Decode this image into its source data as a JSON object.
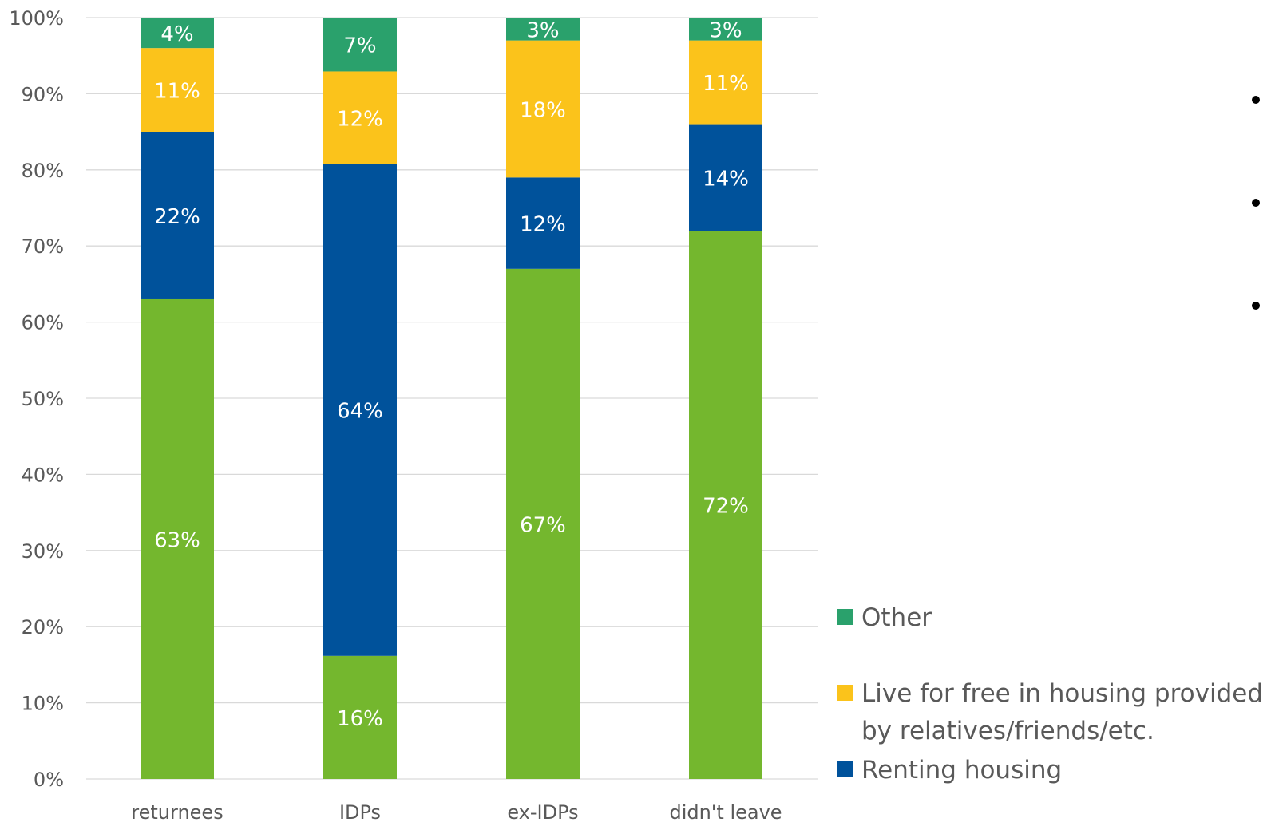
{
  "chart_data": {
    "type": "bar",
    "stacked": true,
    "categories": [
      "returnees",
      "IDPs",
      "ex-IDPs",
      "didn't leave"
    ],
    "ylim": [
      0,
      100
    ],
    "yticks": [
      "0%",
      "10%",
      "20%",
      "30%",
      "40%",
      "50%",
      "60%",
      "70%",
      "80%",
      "90%",
      "100%"
    ],
    "grid": true,
    "legend_position": "right",
    "series": [
      {
        "key": "series0",
        "values": [
          63,
          16,
          67,
          72
        ],
        "labels": [
          "63%",
          "16%",
          "67%",
          "72%"
        ],
        "color": "#74b72e"
      },
      {
        "key": "series1",
        "name": "Renting housing",
        "values": [
          22,
          64,
          12,
          14
        ],
        "labels": [
          "22%",
          "64%",
          "12%",
          "14%"
        ],
        "color": "#00529b"
      },
      {
        "key": "series2",
        "name": "Live for free in housing provided by relatives/friends/etc.",
        "name_lines": [
          "Live for free in housing provided",
          "by relatives/friends/etc."
        ],
        "values": [
          11,
          12,
          18,
          11
        ],
        "labels": [
          "11%",
          "12%",
          "18%",
          "11%"
        ],
        "color": "#fbc31b"
      },
      {
        "key": "series3",
        "name": "Other",
        "values": [
          4,
          7,
          3,
          3
        ],
        "labels": [
          "4%",
          "7%",
          "3%",
          "3%"
        ],
        "color": "#2aa16c"
      }
    ]
  },
  "legend": {
    "items": [
      {
        "series": 3,
        "lines": [
          "Other"
        ],
        "color": "#2aa16c"
      },
      {
        "series": 2,
        "lines": [
          "Live for free in housing provided",
          "by relatives/friends/etc."
        ],
        "color": "#fbc31b"
      },
      {
        "series": 1,
        "lines": [
          "Renting housing"
        ],
        "color": "#00529b"
      }
    ]
  }
}
